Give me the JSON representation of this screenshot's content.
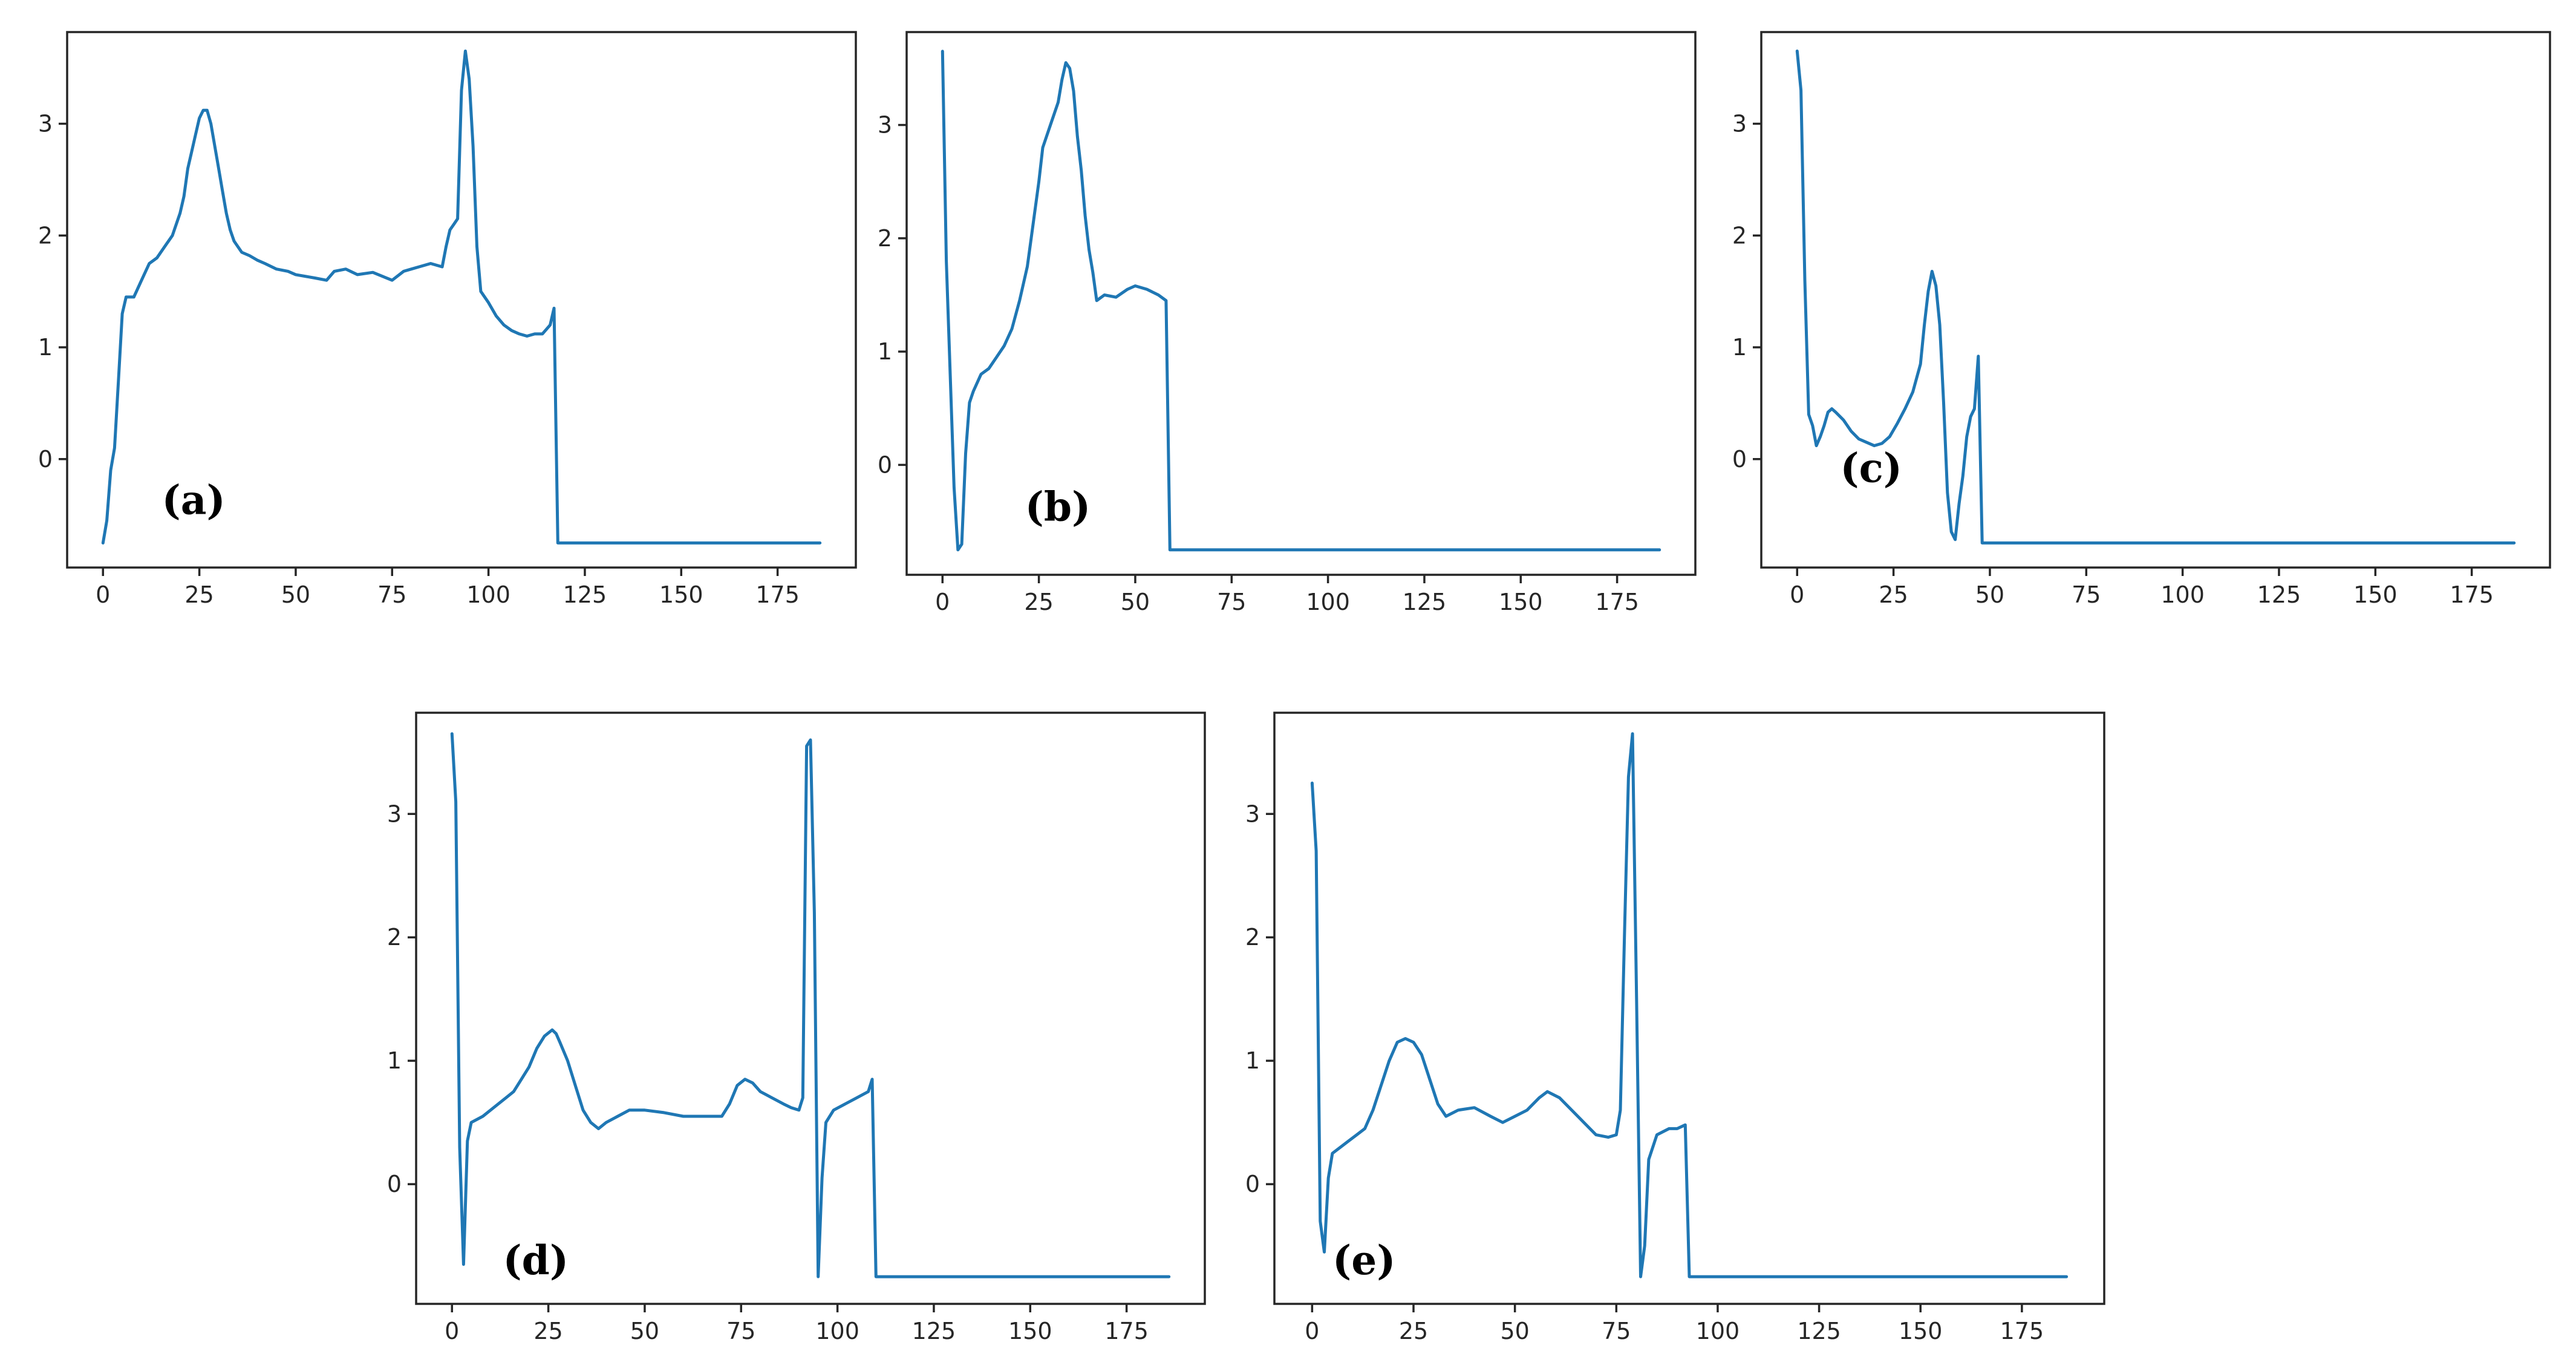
{
  "chart_data": [
    {
      "type": "line",
      "panel_label": "(a)",
      "xlim": [
        -9.3,
        195.3
      ],
      "ylim": [
        -0.97,
        3.82
      ],
      "xticks": [
        0,
        25,
        50,
        75,
        100,
        125,
        150,
        175
      ],
      "yticks": [
        0,
        1,
        2,
        3
      ],
      "color": "#1f77b4",
      "points": [
        [
          0,
          -0.75
        ],
        [
          1,
          -0.55
        ],
        [
          2,
          -0.1
        ],
        [
          3,
          0.1
        ],
        [
          4,
          0.7
        ],
        [
          5,
          1.3
        ],
        [
          6,
          1.45
        ],
        [
          8,
          1.45
        ],
        [
          10,
          1.6
        ],
        [
          12,
          1.75
        ],
        [
          14,
          1.8
        ],
        [
          16,
          1.9
        ],
        [
          18,
          2.0
        ],
        [
          20,
          2.2
        ],
        [
          21,
          2.35
        ],
        [
          22,
          2.6
        ],
        [
          23,
          2.75
        ],
        [
          24,
          2.9
        ],
        [
          25,
          3.05
        ],
        [
          26,
          3.12
        ],
        [
          27,
          3.12
        ],
        [
          28,
          3.0
        ],
        [
          29,
          2.8
        ],
        [
          30,
          2.6
        ],
        [
          31,
          2.4
        ],
        [
          32,
          2.2
        ],
        [
          33,
          2.05
        ],
        [
          34,
          1.95
        ],
        [
          36,
          1.85
        ],
        [
          38,
          1.82
        ],
        [
          40,
          1.78
        ],
        [
          42,
          1.75
        ],
        [
          45,
          1.7
        ],
        [
          48,
          1.68
        ],
        [
          50,
          1.65
        ],
        [
          55,
          1.62
        ],
        [
          58,
          1.6
        ],
        [
          60,
          1.68
        ],
        [
          63,
          1.7
        ],
        [
          66,
          1.65
        ],
        [
          70,
          1.67
        ],
        [
          75,
          1.6
        ],
        [
          78,
          1.68
        ],
        [
          80,
          1.7
        ],
        [
          82,
          1.72
        ],
        [
          85,
          1.75
        ],
        [
          88,
          1.72
        ],
        [
          89,
          1.9
        ],
        [
          90,
          2.05
        ],
        [
          91,
          2.1
        ],
        [
          92,
          2.15
        ],
        [
          93,
          3.3
        ],
        [
          94,
          3.65
        ],
        [
          95,
          3.4
        ],
        [
          96,
          2.8
        ],
        [
          97,
          1.9
        ],
        [
          98,
          1.5
        ],
        [
          100,
          1.4
        ],
        [
          102,
          1.28
        ],
        [
          104,
          1.2
        ],
        [
          106,
          1.15
        ],
        [
          108,
          1.12
        ],
        [
          110,
          1.1
        ],
        [
          112,
          1.12
        ],
        [
          114,
          1.12
        ],
        [
          116,
          1.2
        ],
        [
          117,
          1.35
        ],
        [
          118,
          -0.75
        ],
        [
          186,
          -0.75
        ]
      ]
    },
    {
      "type": "line",
      "panel_label": "(b)",
      "xlim": [
        -9.3,
        195.3
      ],
      "ylim": [
        -0.97,
        3.82
      ],
      "xticks": [
        0,
        25,
        50,
        75,
        100,
        125,
        150,
        175
      ],
      "yticks": [
        0,
        1,
        2,
        3
      ],
      "color": "#1f77b4",
      "points": [
        [
          0,
          3.65
        ],
        [
          1,
          1.8
        ],
        [
          2,
          0.8
        ],
        [
          3,
          -0.2
        ],
        [
          4,
          -0.75
        ],
        [
          5,
          -0.7
        ],
        [
          6,
          0.1
        ],
        [
          7,
          0.55
        ],
        [
          8,
          0.65
        ],
        [
          10,
          0.8
        ],
        [
          12,
          0.85
        ],
        [
          14,
          0.95
        ],
        [
          16,
          1.05
        ],
        [
          18,
          1.2
        ],
        [
          20,
          1.45
        ],
        [
          22,
          1.75
        ],
        [
          23,
          2.0
        ],
        [
          25,
          2.5
        ],
        [
          26,
          2.8
        ],
        [
          28,
          3.0
        ],
        [
          30,
          3.2
        ],
        [
          31,
          3.4
        ],
        [
          32,
          3.55
        ],
        [
          33,
          3.5
        ],
        [
          34,
          3.3
        ],
        [
          35,
          2.9
        ],
        [
          36,
          2.6
        ],
        [
          37,
          2.2
        ],
        [
          38,
          1.9
        ],
        [
          39,
          1.7
        ],
        [
          40,
          1.45
        ],
        [
          42,
          1.5
        ],
        [
          45,
          1.48
        ],
        [
          48,
          1.55
        ],
        [
          50,
          1.58
        ],
        [
          53,
          1.55
        ],
        [
          56,
          1.5
        ],
        [
          58,
          1.45
        ],
        [
          59,
          -0.75
        ],
        [
          186,
          -0.75
        ]
      ]
    },
    {
      "type": "line",
      "panel_label": "(c)",
      "xlim": [
        -9.3,
        195.3
      ],
      "ylim": [
        -0.97,
        3.82
      ],
      "xticks": [
        0,
        25,
        50,
        75,
        100,
        125,
        150,
        175
      ],
      "yticks": [
        0,
        1,
        2,
        3
      ],
      "color": "#1f77b4",
      "points": [
        [
          0,
          3.65
        ],
        [
          1,
          3.3
        ],
        [
          2,
          1.6
        ],
        [
          3,
          0.4
        ],
        [
          4,
          0.3
        ],
        [
          5,
          0.12
        ],
        [
          6,
          0.2
        ],
        [
          7,
          0.3
        ],
        [
          8,
          0.42
        ],
        [
          9,
          0.45
        ],
        [
          10,
          0.42
        ],
        [
          12,
          0.35
        ],
        [
          14,
          0.25
        ],
        [
          16,
          0.18
        ],
        [
          18,
          0.15
        ],
        [
          20,
          0.12
        ],
        [
          22,
          0.14
        ],
        [
          24,
          0.2
        ],
        [
          26,
          0.32
        ],
        [
          28,
          0.45
        ],
        [
          30,
          0.6
        ],
        [
          32,
          0.85
        ],
        [
          33,
          1.2
        ],
        [
          34,
          1.5
        ],
        [
          35,
          1.68
        ],
        [
          36,
          1.55
        ],
        [
          37,
          1.2
        ],
        [
          38,
          0.5
        ],
        [
          39,
          -0.3
        ],
        [
          40,
          -0.65
        ],
        [
          41,
          -0.72
        ],
        [
          42,
          -0.4
        ],
        [
          43,
          -0.15
        ],
        [
          44,
          0.2
        ],
        [
          45,
          0.38
        ],
        [
          46,
          0.45
        ],
        [
          47,
          0.92
        ],
        [
          48,
          -0.75
        ],
        [
          186,
          -0.75
        ]
      ]
    },
    {
      "type": "line",
      "panel_label": "(d)",
      "xlim": [
        -9.3,
        195.3
      ],
      "ylim": [
        -0.97,
        3.82
      ],
      "xticks": [
        0,
        25,
        50,
        75,
        100,
        125,
        150,
        175
      ],
      "yticks": [
        0,
        1,
        2,
        3
      ],
      "color": "#1f77b4",
      "points": [
        [
          0,
          3.65
        ],
        [
          1,
          3.1
        ],
        [
          2,
          0.3
        ],
        [
          3,
          -0.65
        ],
        [
          4,
          0.35
        ],
        [
          5,
          0.5
        ],
        [
          8,
          0.55
        ],
        [
          10,
          0.6
        ],
        [
          12,
          0.65
        ],
        [
          14,
          0.7
        ],
        [
          16,
          0.75
        ],
        [
          18,
          0.85
        ],
        [
          20,
          0.95
        ],
        [
          22,
          1.1
        ],
        [
          24,
          1.2
        ],
        [
          26,
          1.25
        ],
        [
          27,
          1.22
        ],
        [
          28,
          1.15
        ],
        [
          30,
          1.0
        ],
        [
          32,
          0.8
        ],
        [
          34,
          0.6
        ],
        [
          36,
          0.5
        ],
        [
          38,
          0.45
        ],
        [
          40,
          0.5
        ],
        [
          43,
          0.55
        ],
        [
          46,
          0.6
        ],
        [
          50,
          0.6
        ],
        [
          55,
          0.58
        ],
        [
          60,
          0.55
        ],
        [
          65,
          0.55
        ],
        [
          70,
          0.55
        ],
        [
          72,
          0.65
        ],
        [
          74,
          0.8
        ],
        [
          76,
          0.85
        ],
        [
          78,
          0.82
        ],
        [
          80,
          0.75
        ],
        [
          83,
          0.7
        ],
        [
          86,
          0.65
        ],
        [
          88,
          0.62
        ],
        [
          90,
          0.6
        ],
        [
          91,
          0.7
        ],
        [
          92,
          3.55
        ],
        [
          93,
          3.6
        ],
        [
          94,
          2.2
        ],
        [
          95,
          -0.75
        ],
        [
          96,
          0.05
        ],
        [
          97,
          0.5
        ],
        [
          99,
          0.6
        ],
        [
          102,
          0.65
        ],
        [
          105,
          0.7
        ],
        [
          108,
          0.75
        ],
        [
          109,
          0.85
        ],
        [
          110,
          -0.75
        ],
        [
          186,
          -0.75
        ]
      ]
    },
    {
      "type": "line",
      "panel_label": "(e)",
      "xlim": [
        -9.3,
        195.3
      ],
      "ylim": [
        -0.97,
        3.82
      ],
      "xticks": [
        0,
        25,
        50,
        75,
        100,
        125,
        150,
        175
      ],
      "yticks": [
        0,
        1,
        2,
        3
      ],
      "color": "#1f77b4",
      "points": [
        [
          0,
          3.25
        ],
        [
          1,
          2.7
        ],
        [
          2,
          -0.3
        ],
        [
          3,
          -0.55
        ],
        [
          4,
          0.05
        ],
        [
          5,
          0.25
        ],
        [
          7,
          0.3
        ],
        [
          9,
          0.35
        ],
        [
          11,
          0.4
        ],
        [
          13,
          0.45
        ],
        [
          15,
          0.6
        ],
        [
          17,
          0.8
        ],
        [
          19,
          1.0
        ],
        [
          21,
          1.15
        ],
        [
          23,
          1.18
        ],
        [
          25,
          1.15
        ],
        [
          27,
          1.05
        ],
        [
          29,
          0.85
        ],
        [
          31,
          0.65
        ],
        [
          33,
          0.55
        ],
        [
          36,
          0.6
        ],
        [
          40,
          0.62
        ],
        [
          44,
          0.55
        ],
        [
          47,
          0.5
        ],
        [
          50,
          0.55
        ],
        [
          53,
          0.6
        ],
        [
          56,
          0.7
        ],
        [
          58,
          0.75
        ],
        [
          61,
          0.7
        ],
        [
          64,
          0.6
        ],
        [
          67,
          0.5
        ],
        [
          70,
          0.4
        ],
        [
          73,
          0.38
        ],
        [
          75,
          0.4
        ],
        [
          76,
          0.6
        ],
        [
          77,
          2.0
        ],
        [
          78,
          3.3
        ],
        [
          79,
          3.65
        ],
        [
          80,
          1.5
        ],
        [
          81,
          -0.75
        ],
        [
          82,
          -0.5
        ],
        [
          83,
          0.2
        ],
        [
          85,
          0.4
        ],
        [
          88,
          0.45
        ],
        [
          90,
          0.45
        ],
        [
          92,
          0.48
        ],
        [
          93,
          -0.75
        ],
        [
          186,
          -0.75
        ]
      ]
    }
  ]
}
